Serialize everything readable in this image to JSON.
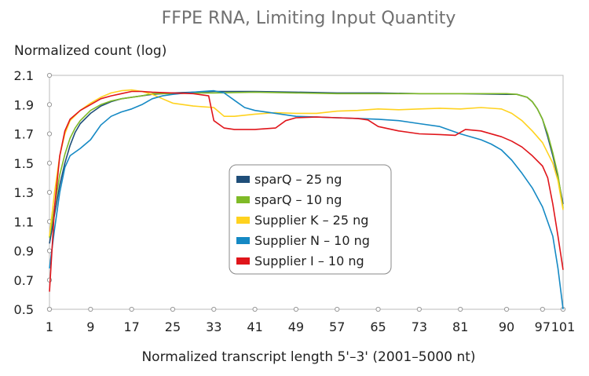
{
  "chart_data": {
    "type": "line",
    "title": "FFPE RNA, Limiting Input Quantity",
    "ylabel": "Normalized count (log)",
    "xlabel": "Normalized transcript length 5'–3' (2001–5000 nt)",
    "xlim": [
      1,
      101
    ],
    "ylim": [
      0.5,
      2.1
    ],
    "x_ticks": [
      "1",
      "9",
      "17",
      "25",
      "33",
      "41",
      "49",
      "57",
      "65",
      "73",
      "81",
      "90",
      "97",
      "101"
    ],
    "y_ticks": [
      "0.5",
      "0.7",
      "0.9",
      "1.1",
      "1.3",
      "1.5",
      "1.7",
      "1.9",
      "2.1"
    ],
    "legend_position": "center",
    "grid": false,
    "series": [
      {
        "name": "sparQ – 25 ng",
        "color": "#1f4e79",
        "points": [
          [
            1,
            0.95
          ],
          [
            2,
            1.15
          ],
          [
            3,
            1.35
          ],
          [
            4,
            1.5
          ],
          [
            5,
            1.62
          ],
          [
            6,
            1.71
          ],
          [
            7,
            1.77
          ],
          [
            9,
            1.84
          ],
          [
            11,
            1.89
          ],
          [
            13,
            1.92
          ],
          [
            15,
            1.94
          ],
          [
            17,
            1.95
          ],
          [
            19,
            1.96
          ],
          [
            21,
            1.97
          ],
          [
            25,
            1.98
          ],
          [
            29,
            1.985
          ],
          [
            33,
            1.99
          ],
          [
            41,
            1.99
          ],
          [
            49,
            1.985
          ],
          [
            57,
            1.98
          ],
          [
            65,
            1.98
          ],
          [
            73,
            1.975
          ],
          [
            81,
            1.975
          ],
          [
            90,
            1.97
          ],
          [
            92,
            1.97
          ],
          [
            94,
            1.95
          ],
          [
            95,
            1.92
          ],
          [
            96,
            1.87
          ],
          [
            97,
            1.8
          ],
          [
            98,
            1.68
          ],
          [
            99,
            1.55
          ],
          [
            100,
            1.4
          ],
          [
            101,
            1.22
          ]
        ]
      },
      {
        "name": "sparQ – 10 ng",
        "color": "#7fba27",
        "points": [
          [
            1,
            0.99
          ],
          [
            2,
            1.2
          ],
          [
            3,
            1.42
          ],
          [
            4,
            1.56
          ],
          [
            5,
            1.67
          ],
          [
            6,
            1.74
          ],
          [
            7,
            1.79
          ],
          [
            9,
            1.86
          ],
          [
            11,
            1.9
          ],
          [
            13,
            1.925
          ],
          [
            15,
            1.94
          ],
          [
            17,
            1.95
          ],
          [
            19,
            1.96
          ],
          [
            21,
            1.975
          ],
          [
            25,
            1.975
          ],
          [
            29,
            1.98
          ],
          [
            33,
            1.98
          ],
          [
            41,
            1.985
          ],
          [
            49,
            1.98
          ],
          [
            57,
            1.975
          ],
          [
            65,
            1.975
          ],
          [
            73,
            1.975
          ],
          [
            81,
            1.975
          ],
          [
            90,
            1.975
          ],
          [
            92,
            1.97
          ],
          [
            94,
            1.95
          ],
          [
            95,
            1.92
          ],
          [
            96,
            1.87
          ],
          [
            97,
            1.8
          ],
          [
            98,
            1.7
          ],
          [
            99,
            1.57
          ],
          [
            100,
            1.42
          ],
          [
            101,
            1.19
          ]
        ]
      },
      {
        "name": "Supplier K – 25 ng",
        "color": "#ffd21f",
        "points": [
          [
            1,
            1.0
          ],
          [
            2,
            1.3
          ],
          [
            3,
            1.55
          ],
          [
            4,
            1.7
          ],
          [
            5,
            1.79
          ],
          [
            7,
            1.86
          ],
          [
            9,
            1.91
          ],
          [
            11,
            1.95
          ],
          [
            13,
            1.98
          ],
          [
            15,
            1.995
          ],
          [
            17,
            2.0
          ],
          [
            19,
            1.99
          ],
          [
            21,
            1.97
          ],
          [
            23,
            1.94
          ],
          [
            25,
            1.91
          ],
          [
            29,
            1.89
          ],
          [
            33,
            1.88
          ],
          [
            35,
            1.82
          ],
          [
            37,
            1.82
          ],
          [
            41,
            1.835
          ],
          [
            45,
            1.845
          ],
          [
            49,
            1.84
          ],
          [
            53,
            1.84
          ],
          [
            57,
            1.855
          ],
          [
            61,
            1.86
          ],
          [
            65,
            1.87
          ],
          [
            69,
            1.865
          ],
          [
            73,
            1.87
          ],
          [
            77,
            1.875
          ],
          [
            81,
            1.87
          ],
          [
            85,
            1.88
          ],
          [
            89,
            1.87
          ],
          [
            91,
            1.84
          ],
          [
            93,
            1.79
          ],
          [
            95,
            1.72
          ],
          [
            97,
            1.64
          ],
          [
            99,
            1.5
          ],
          [
            100,
            1.38
          ],
          [
            101,
            1.18
          ]
        ]
      },
      {
        "name": "Supplier N – 10 ng",
        "color": "#1589c4",
        "points": [
          [
            1,
            0.78
          ],
          [
            2,
            1.05
          ],
          [
            3,
            1.3
          ],
          [
            4,
            1.47
          ],
          [
            5,
            1.55
          ],
          [
            7,
            1.6
          ],
          [
            9,
            1.66
          ],
          [
            11,
            1.76
          ],
          [
            13,
            1.82
          ],
          [
            15,
            1.85
          ],
          [
            17,
            1.87
          ],
          [
            19,
            1.9
          ],
          [
            21,
            1.94
          ],
          [
            23,
            1.96
          ],
          [
            25,
            1.97
          ],
          [
            29,
            1.985
          ],
          [
            33,
            1.995
          ],
          [
            35,
            1.98
          ],
          [
            37,
            1.93
          ],
          [
            39,
            1.88
          ],
          [
            41,
            1.86
          ],
          [
            45,
            1.84
          ],
          [
            49,
            1.82
          ],
          [
            53,
            1.815
          ],
          [
            57,
            1.81
          ],
          [
            61,
            1.805
          ],
          [
            65,
            1.8
          ],
          [
            69,
            1.79
          ],
          [
            73,
            1.77
          ],
          [
            77,
            1.75
          ],
          [
            81,
            1.7
          ],
          [
            85,
            1.66
          ],
          [
            87,
            1.63
          ],
          [
            89,
            1.59
          ],
          [
            91,
            1.52
          ],
          [
            93,
            1.43
          ],
          [
            95,
            1.33
          ],
          [
            97,
            1.2
          ],
          [
            99,
            1.0
          ],
          [
            100,
            0.78
          ],
          [
            101,
            0.5
          ]
        ]
      },
      {
        "name": "Supplier I – 10 ng",
        "color": "#e0151b",
        "points": [
          [
            1,
            0.62
          ],
          [
            2,
            1.2
          ],
          [
            3,
            1.55
          ],
          [
            4,
            1.72
          ],
          [
            5,
            1.8
          ],
          [
            7,
            1.86
          ],
          [
            9,
            1.9
          ],
          [
            11,
            1.94
          ],
          [
            13,
            1.96
          ],
          [
            15,
            1.975
          ],
          [
            17,
            1.99
          ],
          [
            19,
            1.99
          ],
          [
            21,
            1.985
          ],
          [
            25,
            1.98
          ],
          [
            29,
            1.975
          ],
          [
            32,
            1.96
          ],
          [
            33,
            1.79
          ],
          [
            35,
            1.74
          ],
          [
            37,
            1.73
          ],
          [
            41,
            1.73
          ],
          [
            45,
            1.74
          ],
          [
            47,
            1.79
          ],
          [
            49,
            1.81
          ],
          [
            53,
            1.815
          ],
          [
            57,
            1.81
          ],
          [
            61,
            1.805
          ],
          [
            63,
            1.795
          ],
          [
            65,
            1.75
          ],
          [
            69,
            1.72
          ],
          [
            73,
            1.7
          ],
          [
            77,
            1.695
          ],
          [
            80,
            1.69
          ],
          [
            82,
            1.73
          ],
          [
            85,
            1.72
          ],
          [
            89,
            1.68
          ],
          [
            91,
            1.65
          ],
          [
            93,
            1.61
          ],
          [
            95,
            1.55
          ],
          [
            97,
            1.48
          ],
          [
            98,
            1.4
          ],
          [
            99,
            1.22
          ],
          [
            100,
            1.0
          ],
          [
            101,
            0.77
          ]
        ]
      }
    ]
  }
}
